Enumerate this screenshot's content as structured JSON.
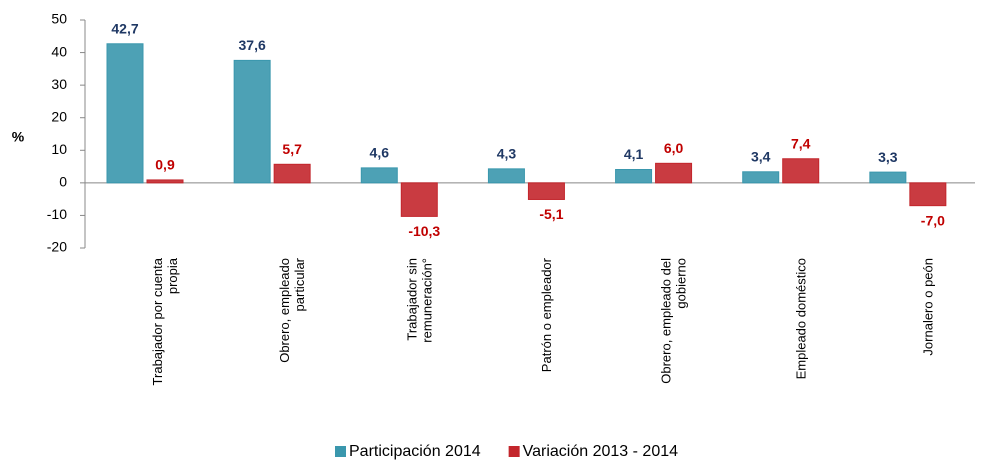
{
  "chart_data": {
    "type": "bar",
    "categories": [
      "Trabajador por cuenta propia",
      "Obrero, empleado particular",
      "Trabajador sin remuneración°",
      "Patrón o empleador",
      "Obrero, empleado del gobierno",
      "Empleado doméstico",
      "Jornalero o peón"
    ],
    "y_label": "%",
    "series": [
      {
        "name": "Participación 2014",
        "color": "#3a97ad",
        "label_color": "#1f3864",
        "values": [
          42.7,
          37.6,
          4.6,
          4.3,
          4.1,
          3.4,
          3.3
        ],
        "value_labels": [
          "42,7",
          "37,6",
          "4,6",
          "4,3",
          "4,1",
          "3,4",
          "3,3"
        ]
      },
      {
        "name": "Variación 2013 - 2014",
        "color": "#c3262c",
        "label_color": "#c00000",
        "values": [
          0.9,
          5.7,
          -10.3,
          -5.1,
          6.0,
          7.4,
          -7.0
        ],
        "value_labels": [
          "0,9",
          "5,7",
          "-10,3",
          "-5,1",
          "6,0",
          "7,4",
          "-7,0"
        ]
      }
    ],
    "ylim": [
      -20,
      50
    ],
    "yticks": [
      -20,
      -10,
      0,
      10,
      20,
      30,
      40,
      50
    ],
    "grid": false,
    "legend": "bottom"
  }
}
